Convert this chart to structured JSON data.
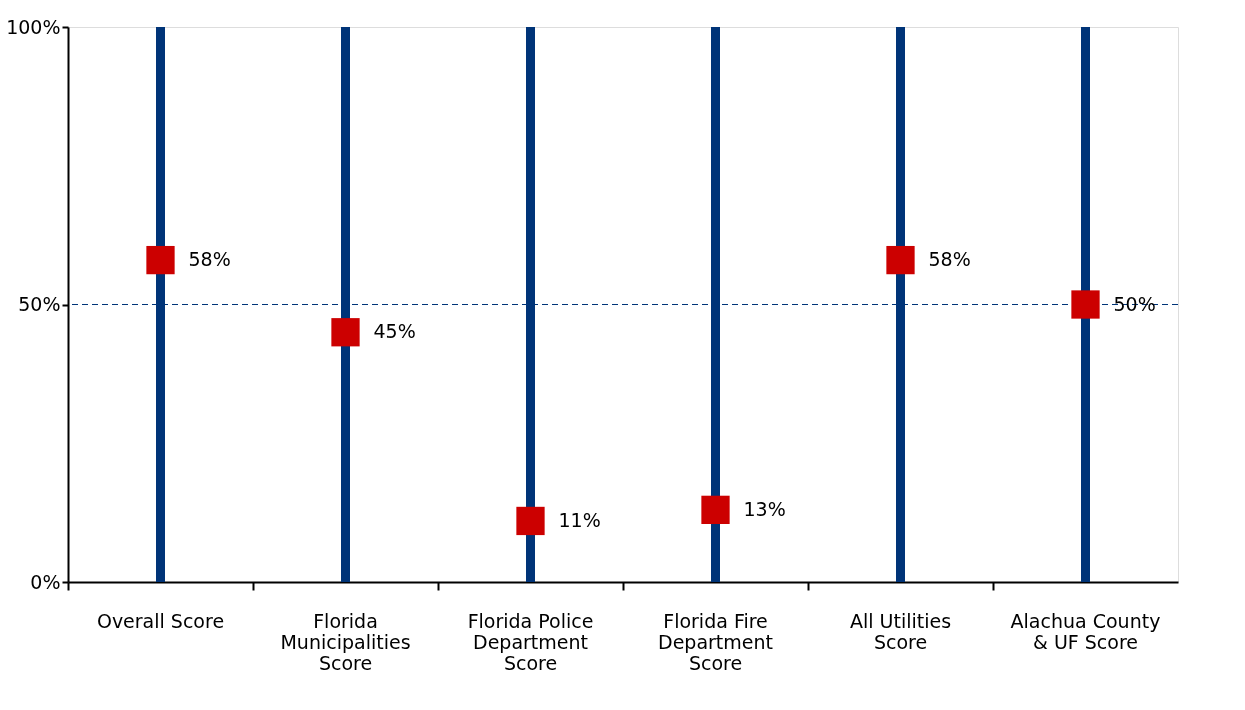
{
  "chart_data": {
    "type": "scatter",
    "categories": [
      "Overall Score",
      "Florida Municipalities Score",
      "Florida Police Department Score",
      "Florida Fire Department Score",
      "All Utilities Score",
      "Alachua County & UF Score"
    ],
    "series": [
      {
        "type": "bar",
        "color": "#003478",
        "values": [
          100,
          100,
          100,
          100,
          100,
          100
        ]
      },
      {
        "color": "#cc0000",
        "marker": "square",
        "values": [
          58,
          45,
          11,
          13,
          58,
          50
        ],
        "value_labels": [
          "58%",
          "45%",
          "11%",
          "13%",
          "58%",
          "50%"
        ]
      }
    ],
    "ylim": [
      0,
      100
    ],
    "yticks": [
      {
        "value": 0,
        "label": "0%"
      },
      {
        "value": 50,
        "label": "50%"
      },
      {
        "value": 100,
        "label": "100%"
      }
    ],
    "ref_lines": [
      {
        "axis": "y",
        "value": 50,
        "color": "#003478",
        "line_style": "dashed"
      }
    ],
    "grid": false,
    "legend": false
  }
}
